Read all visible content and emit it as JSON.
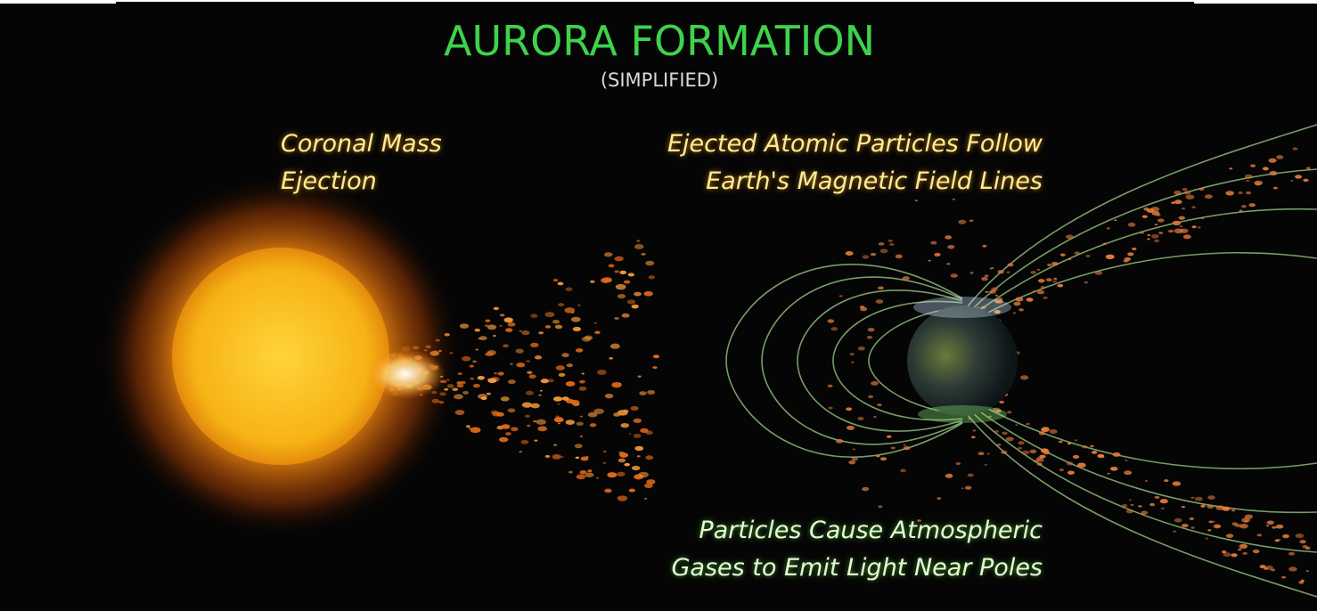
{
  "header": {
    "title": "AURORA FORMATION",
    "subtitle": "(SIMPLIFIED)"
  },
  "labels": [
    {
      "lines": [
        "Coronal Mass",
        "Ejection"
      ]
    },
    {
      "lines": [
        "Ejected Atomic Particles Follow",
        "Earth's Magnetic Field Lines"
      ]
    },
    {
      "lines": [
        "Particles Cause Atmospheric",
        "Gases to Emit Light Near Poles"
      ]
    }
  ]
}
